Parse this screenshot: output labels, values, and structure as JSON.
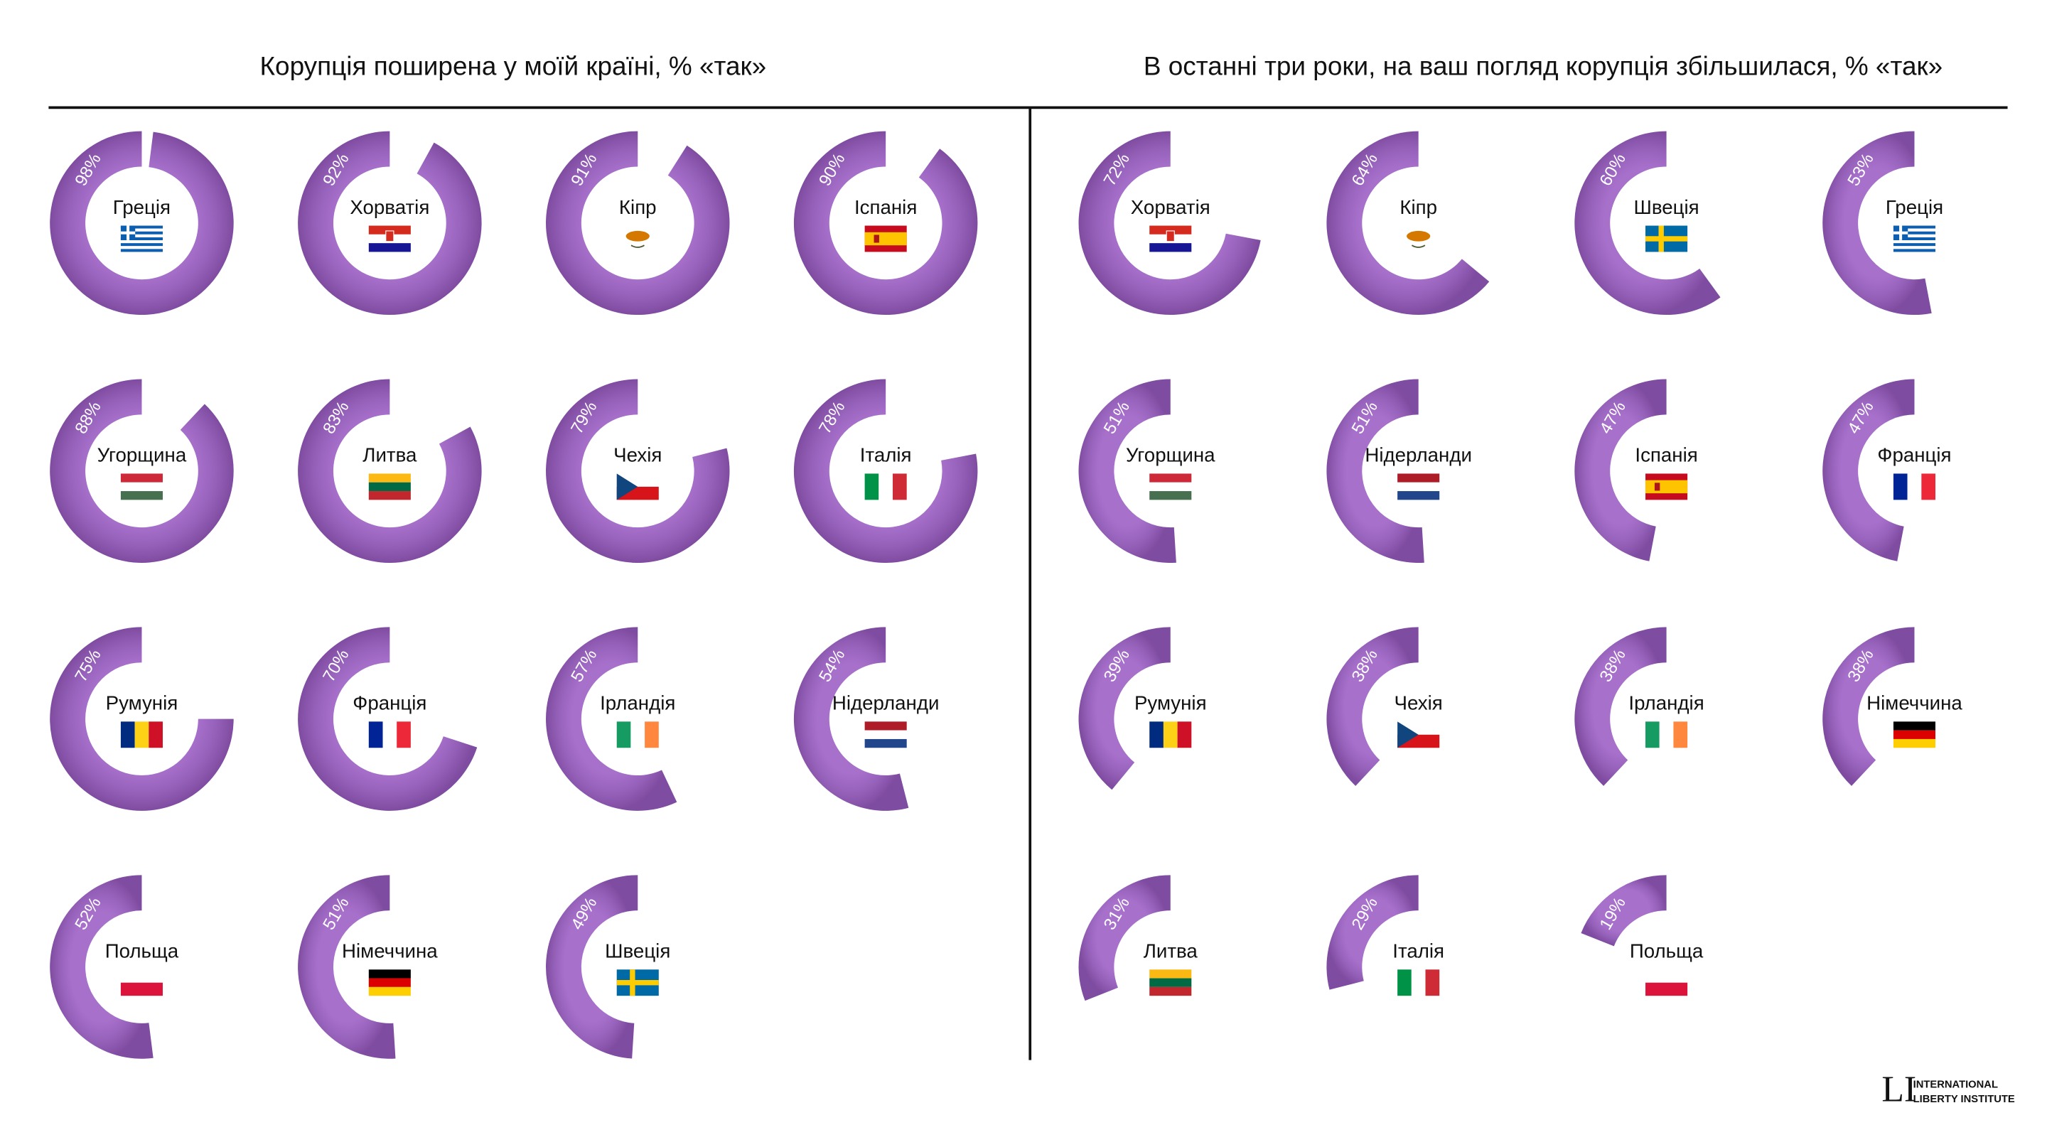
{
  "chart_data": [
    {
      "type": "donut",
      "title": "Корупція поширена у моїй країні, % «так»",
      "color": "#9a5cc4",
      "categories": [
        "Греція",
        "Хорватія",
        "Кіпр",
        "Іспанія",
        "Угорщина",
        "Литва",
        "Чехія",
        "Італія",
        "Румунія",
        "Франція",
        "Ірландія",
        "Нідерланди",
        "Польща",
        "Німеччина",
        "Швеція"
      ],
      "values": [
        98,
        92,
        91,
        90,
        88,
        83,
        79,
        78,
        75,
        70,
        57,
        54,
        52,
        51,
        49
      ],
      "value_labels": [
        "98%",
        "92%",
        "91%",
        "90%",
        "88%",
        "83%",
        "79%",
        "78%",
        "75%",
        "70%",
        "57%",
        "54%",
        "52%",
        "51%",
        "49%"
      ]
    },
    {
      "type": "donut",
      "title": "В останні три роки, на ваш погляд корупція збільшилася, % «так»",
      "color": "#9a5cc4",
      "categories": [
        "Хорватія",
        "Кіпр",
        "Швеція",
        "Греція",
        "Угорщина",
        "Нідерланди",
        "Іспанія",
        "Франція",
        "Румунія",
        "Чехія",
        "Ірландія",
        "Німеччина",
        "Литва",
        "Італія",
        "Польща"
      ],
      "values": [
        72,
        64,
        60,
        53,
        51,
        51,
        47,
        47,
        39,
        38,
        38,
        38,
        31,
        29,
        19
      ],
      "value_labels": [
        "72%",
        "64%",
        "60%",
        "53%",
        "51%",
        "51%",
        "47%",
        "47%",
        "39%",
        "38%",
        "38%",
        "38%",
        "31%",
        "29%",
        "19%"
      ]
    }
  ],
  "logo": {
    "mark": "LI",
    "line1": "INTERNATIONAL",
    "line2": "LIBERTY INSTITUTE"
  }
}
